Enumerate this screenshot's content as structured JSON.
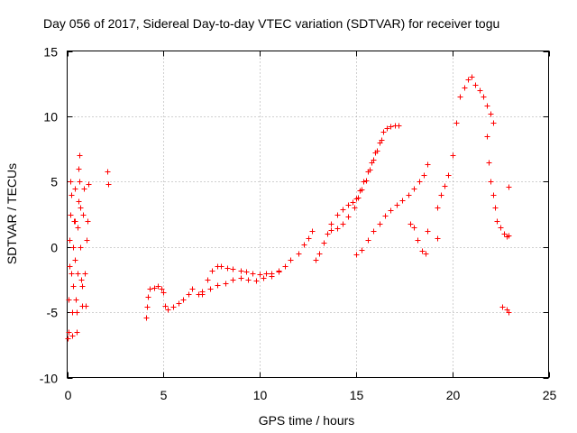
{
  "chart_data": {
    "type": "scatter",
    "title": "Day 056 of 2017, Sidereal Day-to-day VTEC variation (SDTVAR) for receiver togu",
    "xlabel": "GPS time / hours",
    "ylabel": "SDTVAR / TECUs",
    "xlim": [
      0,
      25
    ],
    "ylim": [
      -10,
      15
    ],
    "xticks": [
      "0",
      "5",
      "10",
      "15",
      "20",
      "25"
    ],
    "yticks": [
      "-10",
      "-5",
      "0",
      "5",
      "10",
      "15"
    ],
    "grid": true,
    "marker": "+",
    "color": "#ff0000",
    "series": [
      {
        "name": "SDTVAR",
        "points": [
          [
            0.0,
            -7.0
          ],
          [
            0.05,
            -6.5
          ],
          [
            0.08,
            -4.0
          ],
          [
            0.1,
            -1.5
          ],
          [
            0.12,
            0.5
          ],
          [
            0.15,
            2.5
          ],
          [
            0.18,
            5.0
          ],
          [
            0.2,
            4.0
          ],
          [
            0.22,
            -2.0
          ],
          [
            0.25,
            -5.0
          ],
          [
            0.28,
            -6.8
          ],
          [
            0.3,
            -3.0
          ],
          [
            0.32,
            0.0
          ],
          [
            0.35,
            2.0
          ],
          [
            0.38,
            4.5
          ],
          [
            0.4,
            2.0
          ],
          [
            0.42,
            -1.0
          ],
          [
            0.45,
            -4.0
          ],
          [
            0.48,
            -6.5
          ],
          [
            0.5,
            -5.0
          ],
          [
            0.52,
            -2.0
          ],
          [
            0.55,
            1.5
          ],
          [
            0.58,
            3.5
          ],
          [
            0.6,
            6.0
          ],
          [
            0.62,
            7.0
          ],
          [
            0.65,
            5.0
          ],
          [
            0.68,
            3.0
          ],
          [
            0.7,
            0.0
          ],
          [
            0.72,
            -2.5
          ],
          [
            0.75,
            -4.5
          ],
          [
            0.78,
            -3.0
          ],
          [
            0.8,
            2.5
          ],
          [
            0.85,
            4.5
          ],
          [
            0.9,
            -2.0
          ],
          [
            0.95,
            -4.5
          ],
          [
            1.0,
            0.5
          ],
          [
            1.05,
            2.0
          ],
          [
            1.1,
            4.8
          ],
          [
            2.1,
            5.8
          ],
          [
            2.15,
            4.8
          ],
          [
            4.1,
            -5.4
          ],
          [
            4.15,
            -4.6
          ],
          [
            4.2,
            -3.8
          ],
          [
            4.3,
            -3.2
          ],
          [
            4.5,
            -3.1
          ],
          [
            4.7,
            -3.0
          ],
          [
            4.9,
            -3.2
          ],
          [
            5.0,
            -3.5
          ],
          [
            5.1,
            -4.5
          ],
          [
            5.2,
            -4.8
          ],
          [
            5.5,
            -4.6
          ],
          [
            5.8,
            -4.3
          ],
          [
            6.0,
            -4.0
          ],
          [
            6.3,
            -3.6
          ],
          [
            6.5,
            -3.2
          ],
          [
            6.8,
            -3.6
          ],
          [
            7.0,
            -3.4
          ],
          [
            7.3,
            -2.5
          ],
          [
            7.5,
            -1.8
          ],
          [
            7.8,
            -1.5
          ],
          [
            8.0,
            -1.5
          ],
          [
            8.3,
            -1.6
          ],
          [
            8.6,
            -1.7
          ],
          [
            9.0,
            -1.8
          ],
          [
            9.3,
            -1.9
          ],
          [
            9.6,
            -2.0
          ],
          [
            10.0,
            -2.1
          ],
          [
            10.3,
            -2.0
          ],
          [
            10.6,
            -2.0
          ],
          [
            11.0,
            -1.8
          ],
          [
            11.3,
            -1.5
          ],
          [
            11.6,
            -1.0
          ],
          [
            12.0,
            -0.5
          ],
          [
            12.3,
            0.2
          ],
          [
            12.5,
            0.7
          ],
          [
            12.7,
            1.2
          ],
          [
            7.0,
            -3.6
          ],
          [
            7.4,
            -3.2
          ],
          [
            7.8,
            -2.9
          ],
          [
            8.2,
            -2.8
          ],
          [
            8.6,
            -2.5
          ],
          [
            9.0,
            -2.4
          ],
          [
            9.4,
            -2.5
          ],
          [
            9.8,
            -2.6
          ],
          [
            10.2,
            -2.4
          ],
          [
            10.6,
            -2.2
          ],
          [
            11.0,
            -1.9
          ],
          [
            12.9,
            -1.0
          ],
          [
            13.1,
            -0.5
          ],
          [
            13.3,
            0.3
          ],
          [
            13.5,
            1.0
          ],
          [
            13.7,
            1.8
          ],
          [
            14.0,
            2.5
          ],
          [
            14.3,
            2.9
          ],
          [
            14.6,
            3.2
          ],
          [
            14.8,
            3.4
          ],
          [
            15.0,
            3.7
          ],
          [
            15.2,
            4.3
          ],
          [
            15.4,
            5.0
          ],
          [
            15.6,
            5.8
          ],
          [
            15.8,
            6.5
          ],
          [
            16.0,
            7.2
          ],
          [
            16.2,
            8.0
          ],
          [
            16.4,
            8.8
          ],
          [
            16.6,
            9.1
          ],
          [
            16.8,
            9.2
          ],
          [
            17.0,
            9.3
          ],
          [
            17.2,
            9.3
          ],
          [
            13.7,
            1.3
          ],
          [
            14.0,
            1.4
          ],
          [
            14.3,
            1.8
          ],
          [
            14.6,
            2.3
          ],
          [
            14.9,
            3.0
          ],
          [
            15.1,
            3.8
          ],
          [
            15.3,
            4.4
          ],
          [
            15.5,
            5.1
          ],
          [
            15.7,
            5.9
          ],
          [
            15.9,
            6.7
          ],
          [
            16.1,
            7.4
          ],
          [
            16.3,
            8.2
          ],
          [
            15.0,
            -0.6
          ],
          [
            15.3,
            -0.2
          ],
          [
            15.6,
            0.5
          ],
          [
            15.9,
            1.2
          ],
          [
            16.2,
            1.8
          ],
          [
            16.5,
            2.4
          ],
          [
            16.8,
            2.8
          ],
          [
            17.1,
            3.2
          ],
          [
            17.4,
            3.6
          ],
          [
            17.7,
            4.0
          ],
          [
            18.0,
            4.5
          ],
          [
            18.3,
            5.0
          ],
          [
            18.5,
            5.5
          ],
          [
            18.7,
            6.3
          ],
          [
            17.8,
            1.8
          ],
          [
            18.0,
            1.5
          ],
          [
            18.2,
            0.5
          ],
          [
            18.4,
            -0.3
          ],
          [
            18.6,
            -0.5
          ],
          [
            18.7,
            1.2
          ],
          [
            19.2,
            0.7
          ],
          [
            19.2,
            3.0
          ],
          [
            19.4,
            4.0
          ],
          [
            19.6,
            4.7
          ],
          [
            19.8,
            5.5
          ],
          [
            20.0,
            7.0
          ],
          [
            20.2,
            9.5
          ],
          [
            20.4,
            11.5
          ],
          [
            20.6,
            12.2
          ],
          [
            20.8,
            12.8
          ],
          [
            21.0,
            13.0
          ],
          [
            21.2,
            12.4
          ],
          [
            21.4,
            12.0
          ],
          [
            21.6,
            11.5
          ],
          [
            21.8,
            10.8
          ],
          [
            22.0,
            10.2
          ],
          [
            22.1,
            9.5
          ],
          [
            21.8,
            8.5
          ],
          [
            21.9,
            6.5
          ],
          [
            22.0,
            5.0
          ],
          [
            22.1,
            4.0
          ],
          [
            22.2,
            3.0
          ],
          [
            22.3,
            2.0
          ],
          [
            22.5,
            1.5
          ],
          [
            22.7,
            1.0
          ],
          [
            22.8,
            0.8
          ],
          [
            22.9,
            0.9
          ],
          [
            22.9,
            4.6
          ],
          [
            22.6,
            -4.6
          ],
          [
            22.8,
            -4.8
          ],
          [
            22.9,
            -5.0
          ]
        ]
      }
    ]
  }
}
